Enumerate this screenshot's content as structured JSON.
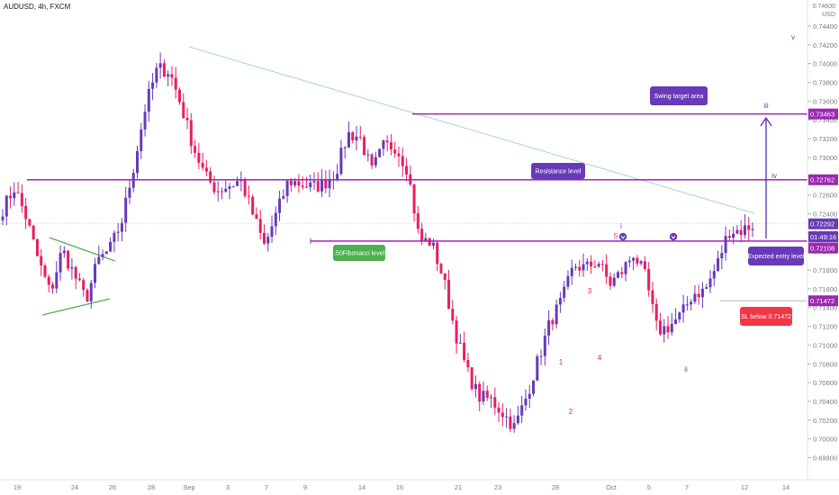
{
  "header": {
    "ticker": "AUDUSD, 4h, FXCM"
  },
  "axis": {
    "currency": "USD",
    "top_label": "0.74600"
  },
  "chart_data": {
    "type": "candlestick",
    "y_ticks": [
      "0.74400",
      "0.74200",
      "0.74000",
      "0.73800",
      "0.73600",
      "0.73400",
      "0.73200",
      "0.73000",
      "0.72800",
      "0.72600",
      "0.72400",
      "0.72200",
      "0.72000",
      "0.71800",
      "0.71600",
      "0.71400",
      "0.71200",
      "0.71000",
      "0.70800",
      "0.70600",
      "0.70400",
      "0.70200",
      "0.70000",
      "0.69800"
    ],
    "x_ticks": [
      "19",
      "24",
      "26",
      "28",
      "Sep",
      "3",
      "7",
      "9",
      "14",
      "16",
      "21",
      "23",
      "28",
      "Oct",
      "5",
      "7",
      "12",
      "14"
    ],
    "ylim": [
      0.6969,
      0.7463
    ],
    "colors": {
      "up": "#673ab7",
      "down": "#e91e63",
      "level": "#9c27b0",
      "trend": "#a5d6d1",
      "triangle": "#4caf50"
    },
    "price_badges": [
      {
        "label": "0.73463",
        "value": 0.73463,
        "color": "#9c27b0"
      },
      {
        "label": "0.72762",
        "value": 0.72762,
        "color": "#9c27b0"
      },
      {
        "label": "0.72292",
        "value": 0.72292,
        "color": "#673ab7"
      },
      {
        "label": "01:49:16",
        "value": 0.72155,
        "color": "#673ab7"
      },
      {
        "label": "0.72108",
        "value": 0.72035,
        "color": "#9c27b0"
      },
      {
        "label": "0.71472",
        "value": 0.71472,
        "color": "#9c27b0"
      }
    ],
    "levels": [
      {
        "name": "swing-target-line",
        "value": 0.73463
      },
      {
        "name": "resistance-line",
        "value": 0.72762
      },
      {
        "name": "entry-line",
        "value": 0.72108
      }
    ],
    "annotations": [
      {
        "name": "swing-target-label",
        "text": "Swing target area",
        "value": 0.7366,
        "color": "#673ab7"
      },
      {
        "name": "resistance-label",
        "text": "Resistance level",
        "value": 0.7284,
        "color": "#673ab7"
      },
      {
        "name": "fib-label",
        "text": ".50Fibonacci level",
        "value": 0.7194,
        "color": "#4caf50"
      },
      {
        "name": "entry-label",
        "text": "Expected entry level",
        "value": 0.7192,
        "color": "#673ab7"
      },
      {
        "name": "sl-label",
        "text": "SL below 0.71472",
        "value": 0.7125,
        "color": "#f23645"
      }
    ],
    "waves": [
      {
        "text": "1",
        "color": "#e91e63"
      },
      {
        "text": "2",
        "color": "#e91e63"
      },
      {
        "text": "3",
        "color": "#e91e63"
      },
      {
        "text": "4",
        "color": "#e91e63"
      },
      {
        "text": "5",
        "color": "#e91e63"
      },
      {
        "text": "i",
        "color": "#673ab7"
      },
      {
        "text": "ii",
        "color": "#673ab7"
      },
      {
        "text": "iii",
        "color": "#673ab7"
      },
      {
        "text": "iv",
        "color": "#673ab7"
      },
      {
        "text": "v",
        "color": "#673ab7"
      }
    ],
    "price_path": [
      [
        0.7226,
        0.7245
      ],
      [
        0.7255,
        0.7268
      ],
      [
        0.7262,
        0.7235
      ],
      [
        0.7212,
        0.719
      ],
      [
        0.7172,
        0.7155
      ],
      [
        0.718,
        0.7202
      ],
      [
        0.7192,
        0.7175
      ],
      [
        0.7158,
        0.7148
      ],
      [
        0.7172,
        0.719
      ],
      [
        0.7182,
        0.7202
      ],
      [
        0.7215,
        0.7232
      ],
      [
        0.7256,
        0.729
      ],
      [
        0.7312,
        0.7355
      ],
      [
        0.7372,
        0.7395
      ],
      [
        0.741,
        0.7392
      ],
      [
        0.7372,
        0.7355
      ],
      [
        0.733,
        0.7312
      ],
      [
        0.73,
        0.728
      ],
      [
        0.7272,
        0.7265
      ],
      [
        0.728,
        0.727
      ],
      [
        0.7282,
        0.7276
      ],
      [
        0.7268,
        0.724
      ],
      [
        0.7222,
        0.7205
      ],
      [
        0.7218,
        0.724
      ],
      [
        0.7262,
        0.7275
      ],
      [
        0.7268,
        0.7272
      ],
      [
        0.728,
        0.7268
      ],
      [
        0.728,
        0.7272
      ],
      [
        0.727,
        0.7285
      ],
      [
        0.7305,
        0.7325
      ],
      [
        0.7338,
        0.7322
      ],
      [
        0.73,
        0.7285
      ],
      [
        0.7298,
        0.7312
      ],
      [
        0.73,
        0.7312
      ],
      [
        0.7315,
        0.7288
      ],
      [
        0.7242,
        0.7212
      ],
      [
        0.7205,
        0.721
      ],
      [
        0.7185,
        0.7172
      ],
      [
        0.7142,
        0.7115
      ],
      [
        0.7092,
        0.7072
      ],
      [
        0.7052,
        0.7045
      ],
      [
        0.7058,
        0.7042
      ],
      [
        0.7035,
        0.7028
      ],
      [
        0.7018,
        0.7012
      ],
      [
        0.7028,
        0.7045
      ],
      [
        0.7062,
        0.7085
      ],
      [
        0.7105,
        0.7125
      ],
      [
        0.7132,
        0.7148
      ],
      [
        0.7162,
        0.7185
      ],
      [
        0.7192,
        0.7182
      ],
      [
        0.7178,
        0.719
      ],
      [
        0.7175,
        0.7165
      ],
      [
        0.716,
        0.7178
      ],
      [
        0.718,
        0.7198
      ],
      [
        0.7188,
        0.7172
      ],
      [
        0.7145,
        0.7115
      ],
      [
        0.71,
        0.712
      ],
      [
        0.7125,
        0.7132
      ],
      [
        0.714,
        0.7155
      ],
      [
        0.7152,
        0.7158
      ],
      [
        0.7172,
        0.7185
      ],
      [
        0.72,
        0.7222
      ],
      [
        0.723,
        0.7222
      ],
      [
        0.722,
        0.7228
      ]
    ]
  }
}
